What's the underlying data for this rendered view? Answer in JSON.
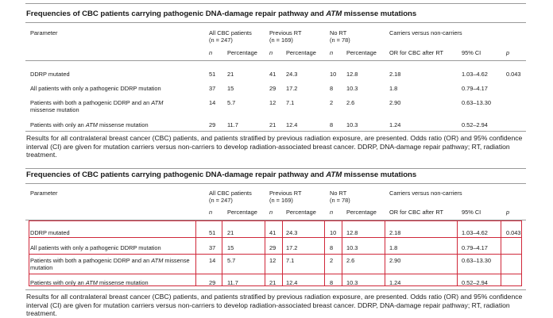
{
  "table": {
    "title_pre": "Frequencies of CBC patients carrying pathogenic DNA-damage repair pathway and ",
    "title_gene": "ATM",
    "title_post": " missense mutations",
    "headers": {
      "parameter": "Parameter",
      "all_cbc": "All CBC patients",
      "all_cbc_n": "(n = 247)",
      "previous_rt": "Previous RT",
      "previous_rt_n": "(n = 169)",
      "no_rt": "No RT",
      "no_rt_n": "(n = 78)",
      "carriers": "Carriers versus non-carriers",
      "n": "n",
      "percentage": "Percentage",
      "or": "OR for CBC after RT",
      "ci": "95% CI",
      "p": "p"
    },
    "rows": [
      {
        "param": "DDRP mutated",
        "param_gene": "",
        "param_post": "",
        "all_n": "51",
        "all_pct": "21",
        "rt_n": "41",
        "rt_pct": "24.3",
        "nort_n": "10",
        "nort_pct": "12.8",
        "or": "2.18",
        "ci": "1.03–4.62",
        "p": "0.043"
      },
      {
        "param": "All patients with only a pathogenic DDRP mutation",
        "param_gene": "",
        "param_post": "",
        "all_n": "37",
        "all_pct": "15",
        "rt_n": "29",
        "rt_pct": "17.2",
        "nort_n": "8",
        "nort_pct": "10.3",
        "or": "1.8",
        "ci": "0.79–4.17",
        "p": ""
      },
      {
        "param": "Patients with both a pathogenic DDRP and an ",
        "param_gene": "ATM",
        "param_post": " missense mutation",
        "all_n": "14",
        "all_pct": "5.7",
        "rt_n": "12",
        "rt_pct": "7.1",
        "nort_n": "2",
        "nort_pct": "2.6",
        "or": "2.90",
        "ci": "0.63–13.30",
        "p": ""
      },
      {
        "param": "Patients with only an ",
        "param_gene": "ATM",
        "param_post": " missense mutation",
        "all_n": "29",
        "all_pct": "11.7",
        "rt_n": "21",
        "rt_pct": "12.4",
        "nort_n": "8",
        "nort_pct": "10.3",
        "or": "1.24",
        "ci": "0.52–2.94",
        "p": ""
      }
    ],
    "caption": "Results for all contralateral breast cancer (CBC) patients, and patients stratified by previous radiation exposure, are presented. Odds ratio (OR) and 95% confidence interval (CI) are given for mutation carriers versus non-carriers to develop radiation-associated breast cancer. DDRP, DNA-damage repair pathway; RT, radiation treatment."
  },
  "colors": {
    "text": "#1a1a1a",
    "rule": "#9a9a9a",
    "grid_overlay": "#d0283a"
  }
}
